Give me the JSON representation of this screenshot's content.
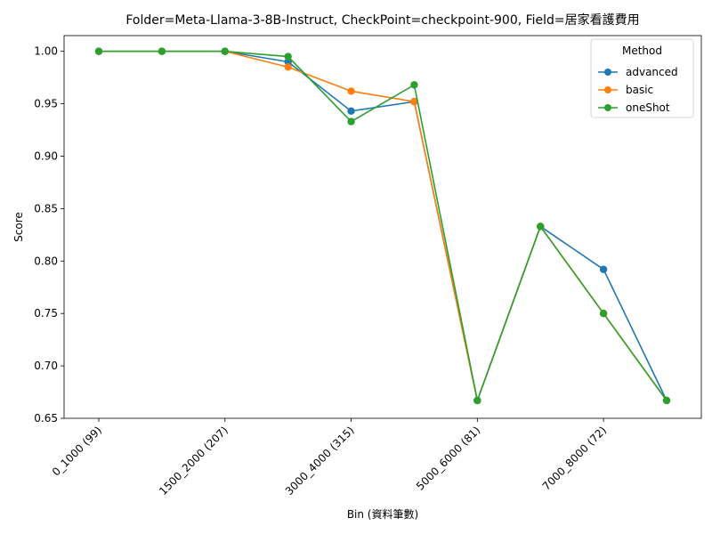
{
  "chart_data": {
    "type": "line",
    "title": "Folder=Meta-Llama-3-8B-Instruct, CheckPoint=checkpoint-900, Field=居家看護費用",
    "xlabel": "Bin (資料筆數)",
    "ylabel": "Score",
    "ylim": [
      0.65,
      1.015
    ],
    "yticks": [
      "0.65",
      "0.70",
      "0.75",
      "0.80",
      "0.85",
      "0.90",
      "0.95",
      "1.00"
    ],
    "xtick_labels": [
      "0_1000 (99)",
      "1500_2000 (207)",
      "3000_4000 (315)",
      "5000_6000 (81)",
      "7000_8000 (72)"
    ],
    "xtick_positions": [
      0,
      2,
      4,
      6,
      8
    ],
    "x": [
      0,
      1,
      2,
      3,
      4,
      5,
      6,
      7,
      8,
      9
    ],
    "legend": {
      "title": "Method",
      "placement": "top-right"
    },
    "series": [
      {
        "name": "advanced",
        "color": "#1f77b4",
        "values": [
          1.0,
          1.0,
          1.0,
          0.99,
          0.943,
          0.952,
          0.667,
          0.833,
          0.792,
          0.667
        ]
      },
      {
        "name": "basic",
        "color": "#ff7f0e",
        "values": [
          1.0,
          1.0,
          1.0,
          0.985,
          0.962,
          0.952,
          0.667,
          0.833,
          0.75,
          0.667
        ]
      },
      {
        "name": "oneShot",
        "color": "#2ca02c",
        "values": [
          1.0,
          1.0,
          1.0,
          0.995,
          0.933,
          0.968,
          0.667,
          0.833,
          0.75,
          0.667
        ]
      }
    ]
  }
}
